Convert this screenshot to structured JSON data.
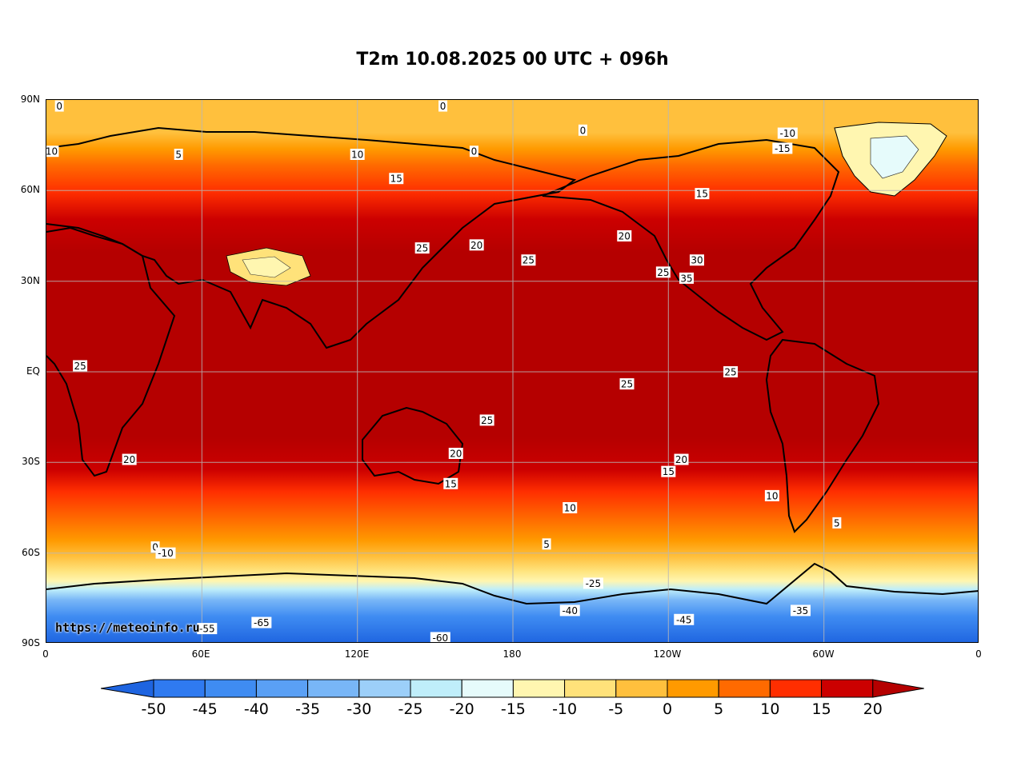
{
  "title": "T2m 10.08.2025 00 UTC + 096h",
  "watermark": "https://meteoinfo.ru",
  "axes": {
    "lat_ticks": [
      "90N",
      "60N",
      "30N",
      "EQ",
      "30S",
      "60S",
      "90S"
    ],
    "lon_ticks": [
      "0",
      "60E",
      "120E",
      "180",
      "120W",
      "60W",
      "0"
    ]
  },
  "colorbar": {
    "ticks": [
      "-50",
      "-45",
      "-40",
      "-35",
      "-30",
      "-25",
      "-20",
      "-15",
      "-10",
      "-5",
      "0",
      "5",
      "10",
      "15",
      "20"
    ],
    "colors": [
      "#1e64e0",
      "#2f7af0",
      "#3f8cf2",
      "#5aa0f5",
      "#78b6f7",
      "#9ccff9",
      "#bfeefa",
      "#e6fbfb",
      "#fff6b0",
      "#ffe27a",
      "#ffc03d",
      "#ff9a00",
      "#ff6a00",
      "#ff2e00",
      "#cc0000",
      "#b50000"
    ]
  },
  "contour_labels": [
    {
      "t": "0",
      "lon": 5,
      "lat": 88
    },
    {
      "t": "0",
      "lon": 153,
      "lat": 88
    },
    {
      "t": "10",
      "lon": 2,
      "lat": 73
    },
    {
      "t": "5",
      "lon": 51,
      "lat": 72
    },
    {
      "t": "10",
      "lon": 120,
      "lat": 72
    },
    {
      "t": "0",
      "lon": 165,
      "lat": 73
    },
    {
      "t": "0",
      "lon": 207,
      "lat": 80
    },
    {
      "t": "-10",
      "lon": 286,
      "lat": 79
    },
    {
      "t": "-15",
      "lon": 284,
      "lat": 74
    },
    {
      "t": "15",
      "lon": 135,
      "lat": 64
    },
    {
      "t": "15",
      "lon": 253,
      "lat": 59
    },
    {
      "t": "20",
      "lon": 223,
      "lat": 45
    },
    {
      "t": "20",
      "lon": 166,
      "lat": 42
    },
    {
      "t": "25",
      "lon": 186,
      "lat": 37
    },
    {
      "t": "25",
      "lon": 238,
      "lat": 33
    },
    {
      "t": "35",
      "lon": 247,
      "lat": 31
    },
    {
      "t": "30",
      "lon": 251,
      "lat": 37
    },
    {
      "t": "25",
      "lon": 145,
      "lat": 41
    },
    {
      "t": "25",
      "lon": 13,
      "lat": 2
    },
    {
      "t": "25",
      "lon": 264,
      "lat": 0
    },
    {
      "t": "25",
      "lon": 224,
      "lat": -4
    },
    {
      "t": "25",
      "lon": 170,
      "lat": -16
    },
    {
      "t": "20",
      "lon": 158,
      "lat": -27
    },
    {
      "t": "20",
      "lon": 245,
      "lat": -29
    },
    {
      "t": "20",
      "lon": 32,
      "lat": -29
    },
    {
      "t": "15",
      "lon": 156,
      "lat": -37
    },
    {
      "t": "15",
      "lon": 240,
      "lat": -33
    },
    {
      "t": "10",
      "lon": 202,
      "lat": -45
    },
    {
      "t": "10",
      "lon": 280,
      "lat": -41
    },
    {
      "t": "5",
      "lon": 305,
      "lat": -50
    },
    {
      "t": "5",
      "lon": 193,
      "lat": -57
    },
    {
      "t": "0",
      "lon": 42,
      "lat": -58
    },
    {
      "t": "-10",
      "lon": 46,
      "lat": -60
    },
    {
      "t": "-25",
      "lon": 211,
      "lat": -70
    },
    {
      "t": "-40",
      "lon": 202,
      "lat": -79
    },
    {
      "t": "-55",
      "lon": 62,
      "lat": -85
    },
    {
      "t": "-60",
      "lon": 152,
      "lat": -88
    },
    {
      "t": "-45",
      "lon": 246,
      "lat": -82
    },
    {
      "t": "-35",
      "lon": 291,
      "lat": -79
    },
    {
      "t": "-65",
      "lon": 83,
      "lat": -83
    }
  ]
}
